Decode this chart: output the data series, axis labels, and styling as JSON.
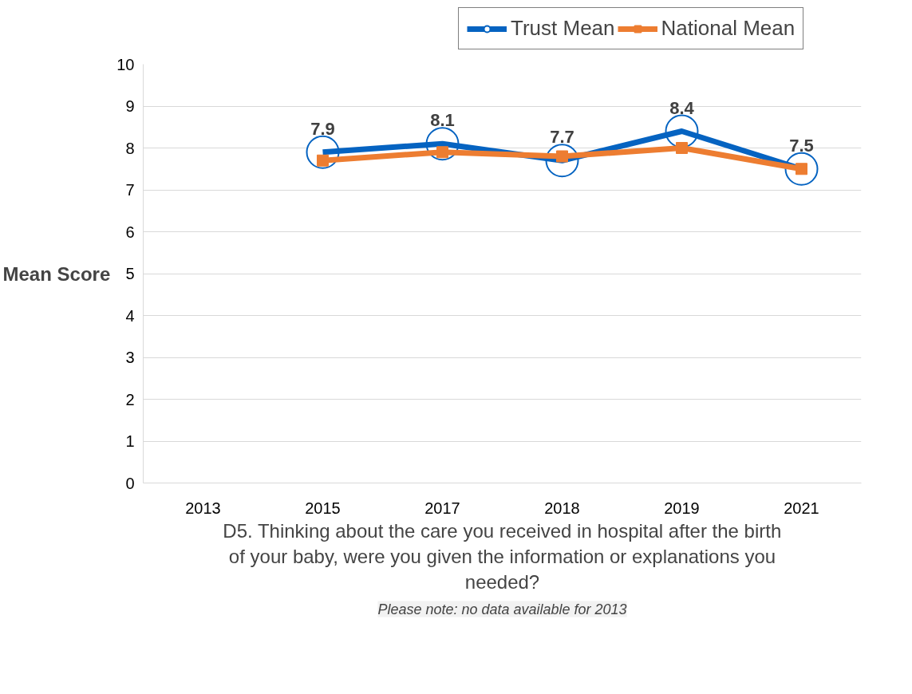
{
  "chart_data": {
    "type": "line",
    "categories": [
      "2013",
      "2015",
      "2017",
      "2018",
      "2019",
      "2021"
    ],
    "xlabel": "D5. Thinking about the care you received in hospital after the birth of your baby, were you given the information or explanations you needed?",
    "ylabel": "Mean Score",
    "ylim": [
      0,
      10
    ],
    "yticks": [
      0,
      1,
      2,
      3,
      4,
      5,
      6,
      7,
      8,
      9,
      10
    ],
    "grid": "y",
    "legend": "top",
    "annotations": [
      "Please note: no data available for 2013"
    ],
    "series": [
      {
        "name": "Trust Mean",
        "color": "#0563c1",
        "marker": "circle",
        "values": [
          null,
          7.9,
          8.1,
          7.7,
          8.4,
          7.5
        ],
        "value_labels": [
          null,
          "7.9",
          "8.1",
          "7.7",
          "8.4",
          "7.5"
        ]
      },
      {
        "name": "National Mean",
        "color": "#ed7d31",
        "marker": "square",
        "values": [
          null,
          7.7,
          7.9,
          7.8,
          8.0,
          7.5
        ]
      }
    ]
  }
}
